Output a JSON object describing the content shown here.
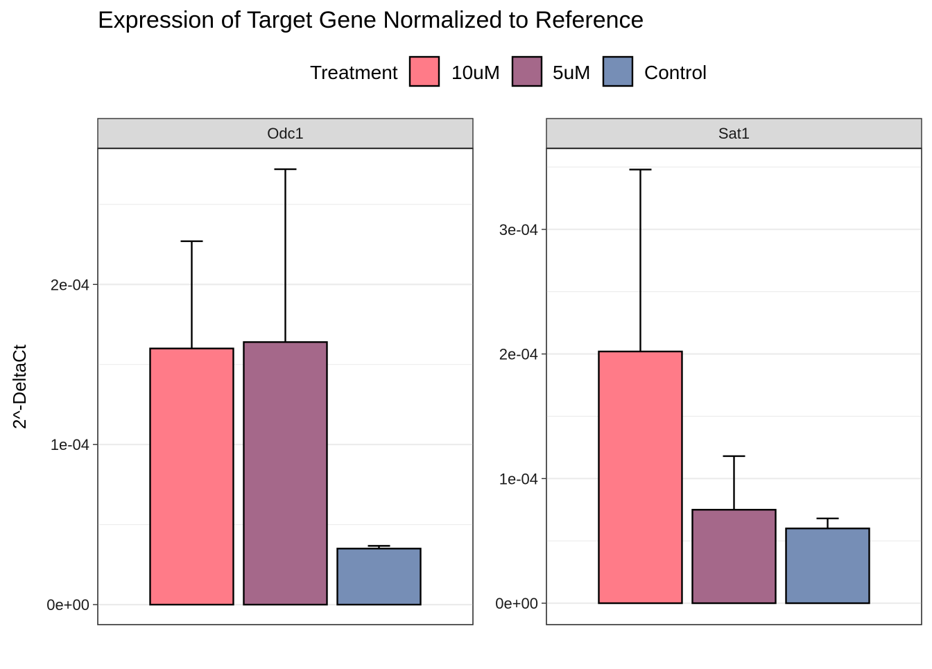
{
  "chart_data": {
    "type": "bar",
    "title": "Expression of Target Gene Normalized to Reference",
    "ylabel": "2^-DeltaCt",
    "xlabel": "",
    "legend": {
      "title": "Treatment",
      "position": "top",
      "entries": [
        "10uM",
        "5uM",
        "Control"
      ]
    },
    "colors": {
      "10uM": "#ff7b88",
      "5uM": "#a5688a",
      "Control": "#768eb6"
    },
    "grid": true,
    "panels": [
      {
        "facet": "Odc1",
        "ylim": [
          -1.25e-05,
          0.000285
        ],
        "ticks": [
          {
            "value": 0,
            "label": "0e+00"
          },
          {
            "value": 0.0001,
            "label": "1e-04"
          },
          {
            "value": 0.0002,
            "label": "2e-04"
          }
        ],
        "minor": [
          5e-05,
          0.00015,
          0.00025
        ],
        "bars": [
          {
            "treatment": "10uM",
            "value": 0.00016,
            "error_upper": 0.000227
          },
          {
            "treatment": "5uM",
            "value": 0.000164,
            "error_upper": 0.000272
          },
          {
            "treatment": "Control",
            "value": 3.5e-05,
            "error_upper": 3.67e-05
          }
        ]
      },
      {
        "facet": "Sat1",
        "ylim": [
          -1.72e-05,
          0.000365
        ],
        "ticks": [
          {
            "value": 0,
            "label": "0e+00"
          },
          {
            "value": 0.0001,
            "label": "1e-04"
          },
          {
            "value": 0.0002,
            "label": "2e-04"
          },
          {
            "value": 0.0003,
            "label": "3e-04"
          }
        ],
        "minor": [
          5e-05,
          0.00015,
          0.00025,
          0.00035
        ],
        "bars": [
          {
            "treatment": "10uM",
            "value": 0.000202,
            "error_upper": 0.000348
          },
          {
            "treatment": "5uM",
            "value": 7.5e-05,
            "error_upper": 0.000118
          },
          {
            "treatment": "Control",
            "value": 6e-05,
            "error_upper": 6.8e-05
          }
        ]
      }
    ]
  }
}
